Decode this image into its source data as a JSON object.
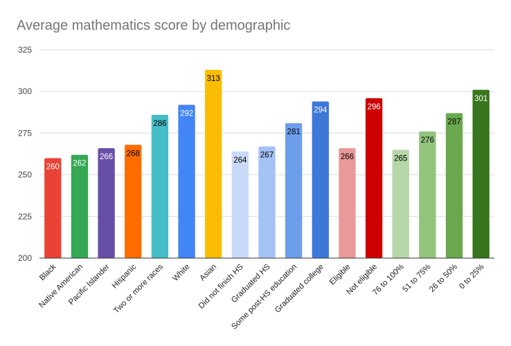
{
  "chart_data": {
    "type": "bar",
    "title": "Average mathematics score by demographic",
    "xlabel": "",
    "ylabel": "",
    "ylim": [
      200,
      325
    ],
    "yticks": [
      200,
      225,
      250,
      275,
      300,
      325
    ],
    "grid": true,
    "legend": "none",
    "categories": [
      "Black",
      "Native American",
      "Pacific Islander",
      "Hispanic",
      "Two or more races",
      "White",
      "Asian",
      "Did not finish HS",
      "Graduated HS",
      "Some post-HS education",
      "Graduated college",
      "Eligible",
      "Not eligible",
      "76 to 100%",
      "51 to 75%",
      "26 to 50%",
      "0 to 25%"
    ],
    "values": [
      260,
      262,
      266,
      268,
      286,
      292,
      313,
      264,
      267,
      281,
      294,
      266,
      296,
      265,
      276,
      287,
      301
    ],
    "colors": [
      "#ea4335",
      "#34a853",
      "#674ea7",
      "#ff6d01",
      "#46bdc6",
      "#4285f4",
      "#fbbc04",
      "#c9daf8",
      "#a4c2f4",
      "#6d9eeb",
      "#3c78d8",
      "#ea9999",
      "#cc0000",
      "#b6d7a8",
      "#93c47d",
      "#6aa84f",
      "#38761d"
    ],
    "label_colors": [
      "#ffffff",
      "#ffffff",
      "#ffffff",
      "#000000",
      "#000000",
      "#ffffff",
      "#000000",
      "#000000",
      "#000000",
      "#000000",
      "#ffffff",
      "#000000",
      "#ffffff",
      "#000000",
      "#000000",
      "#000000",
      "#ffffff"
    ]
  }
}
